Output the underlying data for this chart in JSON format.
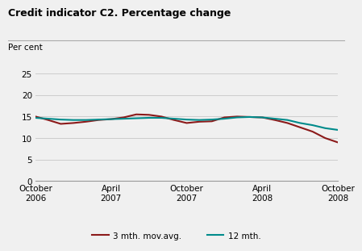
{
  "title": "Credit indicator C2. Percentage change",
  "ylabel": "Per cent",
  "ylim": [
    0,
    25
  ],
  "yticks": [
    0,
    5,
    10,
    15,
    20,
    25
  ],
  "background_color": "#f0f0f0",
  "plot_bg_color": "#f0f0f0",
  "grid_color": "#cccccc",
  "line1_color": "#8b1a1a",
  "line2_color": "#008b8b",
  "line1_label": "3 mth. mov.avg.",
  "line2_label": "12 mth.",
  "xtick_positions": [
    0,
    6,
    12,
    18,
    24
  ],
  "xtick_labels": [
    "October\n2006",
    "April\n2007",
    "October\n2007",
    "April\n2008",
    "October\n2008"
  ],
  "line1_x": [
    0,
    1,
    2,
    3,
    4,
    5,
    6,
    7,
    8,
    9,
    10,
    11,
    12,
    13,
    14,
    15,
    16,
    17,
    18,
    19,
    20,
    21,
    22,
    23,
    24
  ],
  "line1_y": [
    15.0,
    14.2,
    13.3,
    13.5,
    13.8,
    14.2,
    14.4,
    14.8,
    15.5,
    15.4,
    15.0,
    14.2,
    13.5,
    13.8,
    13.9,
    14.8,
    15.0,
    14.9,
    14.8,
    14.2,
    13.5,
    12.5,
    11.5,
    10.0,
    9.0
  ],
  "line2_x": [
    0,
    1,
    2,
    3,
    4,
    5,
    6,
    7,
    8,
    9,
    10,
    11,
    12,
    13,
    14,
    15,
    16,
    17,
    18,
    19,
    20,
    21,
    22,
    23,
    24
  ],
  "line2_y": [
    14.7,
    14.5,
    14.3,
    14.2,
    14.2,
    14.3,
    14.4,
    14.5,
    14.6,
    14.7,
    14.7,
    14.5,
    14.3,
    14.2,
    14.3,
    14.5,
    14.8,
    14.9,
    14.8,
    14.5,
    14.2,
    13.5,
    13.0,
    12.3,
    11.9
  ]
}
